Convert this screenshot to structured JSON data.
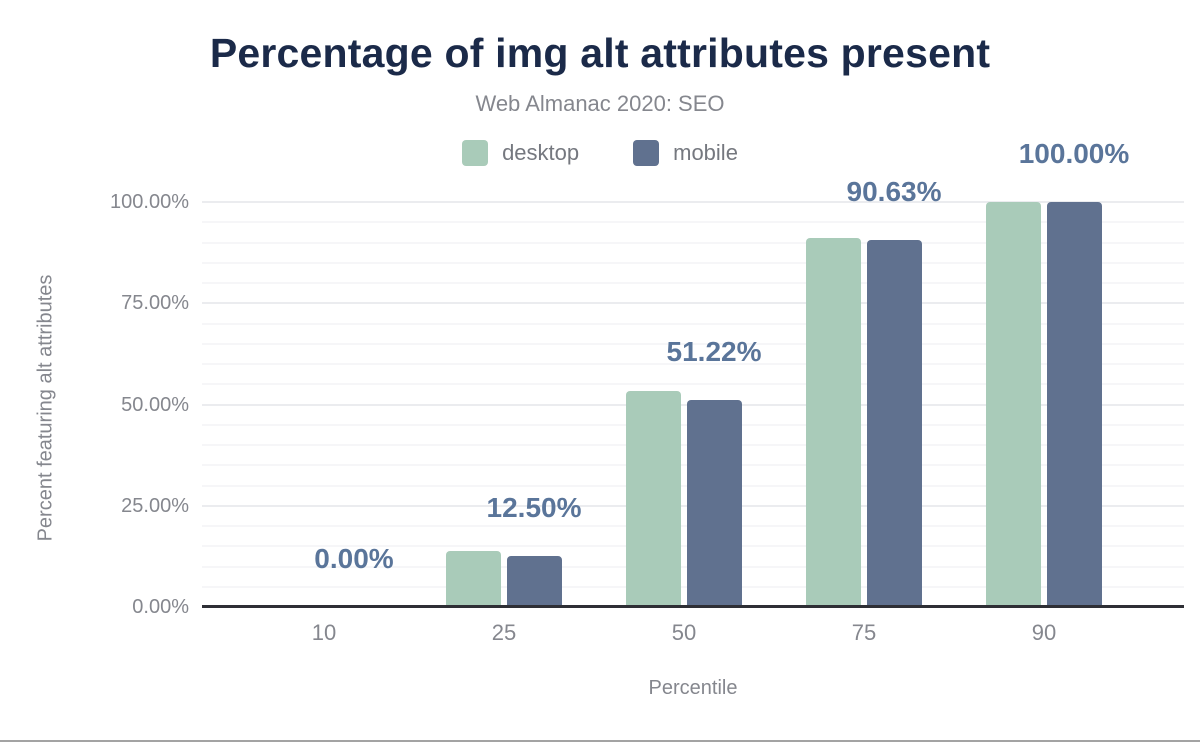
{
  "title": "Percentage of img alt attributes present",
  "subtitle": "Web Almanac 2020: SEO",
  "legend": {
    "items": [
      {
        "label": "desktop",
        "color": "#a9cbb9"
      },
      {
        "label": "mobile",
        "color": "#60718f"
      }
    ]
  },
  "x_axis": {
    "title": "Percentile",
    "ticks": [
      "10",
      "25",
      "50",
      "75",
      "90"
    ]
  },
  "y_axis": {
    "title": "Percent featuring alt attributes",
    "ticks": [
      {
        "label": "0.00%",
        "value": 0
      },
      {
        "label": "25.00%",
        "value": 25
      },
      {
        "label": "50.00%",
        "value": 50
      },
      {
        "label": "75.00%",
        "value": 75
      },
      {
        "label": "100.00%",
        "value": 100
      }
    ],
    "min": 0,
    "max": 100,
    "minor_grid_step": 5,
    "major_grid_step": 25
  },
  "chart_data": {
    "type": "bar",
    "title": "Percentage of img alt attributes present",
    "subtitle": "Web Almanac 2020: SEO",
    "categories": [
      "10",
      "25",
      "50",
      "75",
      "90"
    ],
    "series": [
      {
        "name": "desktop",
        "color": "#a9cbb9",
        "values": [
          0.0,
          13.9,
          53.4,
          91.0,
          99.9
        ]
      },
      {
        "name": "mobile",
        "color": "#60718f",
        "values": [
          0.0,
          12.5,
          51.22,
          90.63,
          100.0
        ]
      }
    ],
    "data_labels": [
      "0.00%",
      "12.50%",
      "51.22%",
      "90.63%",
      "100.00%"
    ],
    "data_labels_series": "mobile",
    "xlabel": "Percentile",
    "ylabel": "Percent featuring alt attributes",
    "ylim": [
      0,
      100
    ],
    "grid": "horizontal",
    "legend_position": "top"
  },
  "colors": {
    "title_text": "#1b2a49",
    "muted_text": "#85878e",
    "legend_text": "#75787f",
    "data_label_text": "#5a759a",
    "desktop_bar": "#a9cbb9",
    "mobile_bar": "#60718f",
    "axis_line": "#2e2f35",
    "grid_major": "#ebecef",
    "grid_minor": "#f6f6f8",
    "figure_bottom_border": "#a3a3a3",
    "background": "#ffffff"
  }
}
